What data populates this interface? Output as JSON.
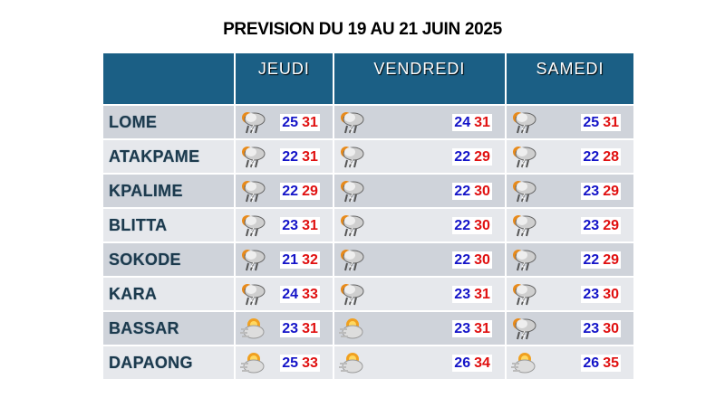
{
  "title": "PREVISION DU 19 AU 21 JUIN 2025",
  "colors": {
    "header_bg": "#1b5f85",
    "min_temp": "#1414c8",
    "max_temp": "#e01010"
  },
  "days": [
    "JEUDI",
    "VENDREDI",
    "SAMEDI"
  ],
  "rows": [
    {
      "city": "LOME",
      "forecasts": [
        {
          "icon": "thunderstorm-icon",
          "min": "25",
          "max": "31"
        },
        {
          "icon": "thunderstorm-icon",
          "min": "24",
          "max": "31"
        },
        {
          "icon": "thunderstorm-icon",
          "min": "25",
          "max": "31"
        }
      ]
    },
    {
      "city": "ATAKPAME",
      "forecasts": [
        {
          "icon": "thunderstorm-icon",
          "min": "22",
          "max": "31"
        },
        {
          "icon": "thunderstorm-icon",
          "min": "22",
          "max": "29"
        },
        {
          "icon": "thunderstorm-icon",
          "min": "22",
          "max": "28"
        }
      ]
    },
    {
      "city": "KPALIME",
      "forecasts": [
        {
          "icon": "thunderstorm-icon",
          "min": "22",
          "max": "29"
        },
        {
          "icon": "thunderstorm-icon",
          "min": "22",
          "max": "30"
        },
        {
          "icon": "thunderstorm-icon",
          "min": "23",
          "max": "29"
        }
      ]
    },
    {
      "city": "BLITTA",
      "forecasts": [
        {
          "icon": "thunderstorm-icon",
          "min": "23",
          "max": "31"
        },
        {
          "icon": "thunderstorm-icon",
          "min": "22",
          "max": "30"
        },
        {
          "icon": "thunderstorm-icon",
          "min": "23",
          "max": "29"
        }
      ]
    },
    {
      "city": "SOKODE",
      "forecasts": [
        {
          "icon": "thunderstorm-icon",
          "min": "21",
          "max": "32"
        },
        {
          "icon": "thunderstorm-icon",
          "min": "22",
          "max": "30"
        },
        {
          "icon": "thunderstorm-icon",
          "min": "22",
          "max": "29"
        }
      ]
    },
    {
      "city": "KARA",
      "forecasts": [
        {
          "icon": "thunderstorm-icon",
          "min": "24",
          "max": "33"
        },
        {
          "icon": "thunderstorm-icon",
          "min": "23",
          "max": "31"
        },
        {
          "icon": "thunderstorm-icon",
          "min": "23",
          "max": "30"
        }
      ]
    },
    {
      "city": "BASSAR",
      "forecasts": [
        {
          "icon": "hazy-sun-cloud-icon",
          "min": "23",
          "max": "31"
        },
        {
          "icon": "hazy-sun-cloud-icon",
          "min": "23",
          "max": "31"
        },
        {
          "icon": "thunderstorm-icon",
          "min": "23",
          "max": "30"
        }
      ]
    },
    {
      "city": "DAPAONG",
      "forecasts": [
        {
          "icon": "hazy-sun-cloud-icon",
          "min": "25",
          "max": "33"
        },
        {
          "icon": "hazy-sun-cloud-icon",
          "min": "26",
          "max": "34"
        },
        {
          "icon": "hazy-sun-cloud-icon",
          "min": "26",
          "max": "35"
        }
      ]
    }
  ]
}
